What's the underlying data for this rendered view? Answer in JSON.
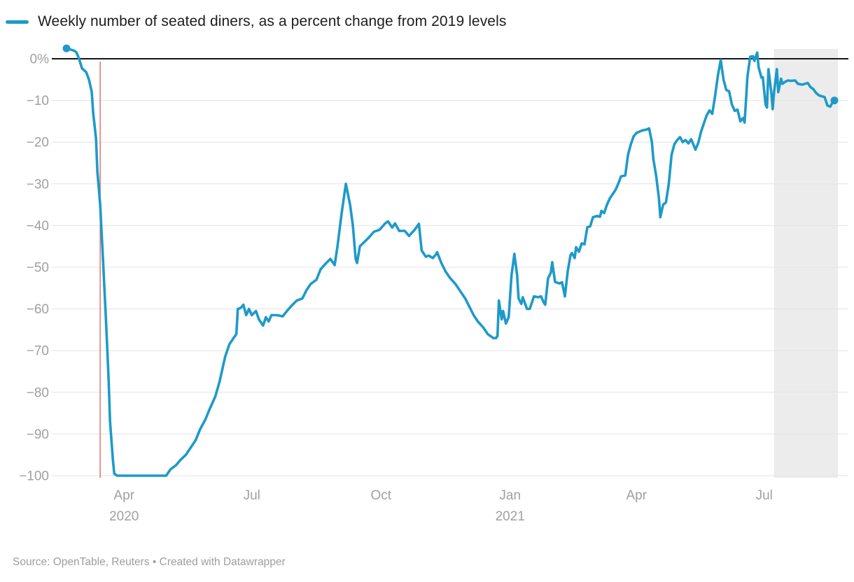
{
  "header": {
    "title": "Weekly number of seated diners, as a percent change from 2019 levels"
  },
  "footer": {
    "source": "Source: OpenTable, Reuters • Created with Datawrapper"
  },
  "chart_data": {
    "type": "line",
    "title": "Weekly number of seated diners, as a percent change from 2019 levels",
    "xlabel": "",
    "ylabel": "percent change from 2019 levels",
    "ylim": [
      -100,
      3
    ],
    "grid": true,
    "legend_position": "top-left",
    "line_color": "#1e9ac8",
    "grid_color": "#e3e3e3",
    "zero_line_color": "#151515",
    "axis_text_color": "#a0a0a0",
    "event_line": {
      "date": "2020-03-15",
      "color": "#e07474"
    },
    "highlight_range": {
      "from": "2021-07-08",
      "to": "2021-08-22",
      "color": "#ececec"
    },
    "y_ticks": [
      {
        "value": 0,
        "label": "0%"
      },
      {
        "value": -10,
        "label": "−10"
      },
      {
        "value": -20,
        "label": "−20"
      },
      {
        "value": -30,
        "label": "−30"
      },
      {
        "value": -40,
        "label": "−40"
      },
      {
        "value": -50,
        "label": "−50"
      },
      {
        "value": -60,
        "label": "−60"
      },
      {
        "value": -70,
        "label": "−70"
      },
      {
        "value": -80,
        "label": "−80"
      },
      {
        "value": -90,
        "label": "−90"
      },
      {
        "value": -100,
        "label": "−100"
      }
    ],
    "x_ticks": [
      {
        "date": "2020-04-01",
        "label": "Apr",
        "year": "2020"
      },
      {
        "date": "2020-07-01",
        "label": "Jul"
      },
      {
        "date": "2020-10-01",
        "label": "Oct"
      },
      {
        "date": "2021-01-01",
        "label": "Jan",
        "year": "2021"
      },
      {
        "date": "2021-04-01",
        "label": "Apr"
      },
      {
        "date": "2021-07-01",
        "label": "Jul"
      }
    ],
    "points": [
      [
        "2020-02-20",
        2.5
      ],
      [
        "2020-02-22",
        2.3
      ],
      [
        "2020-02-25",
        2.0
      ],
      [
        "2020-02-27",
        1.6
      ],
      [
        "2020-02-29",
        0
      ],
      [
        "2020-03-02",
        -2.3
      ],
      [
        "2020-03-03",
        -2.6
      ],
      [
        "2020-03-05",
        -3.2
      ],
      [
        "2020-03-07",
        -5
      ],
      [
        "2020-03-09",
        -8
      ],
      [
        "2020-03-10",
        -13
      ],
      [
        "2020-03-12",
        -19
      ],
      [
        "2020-03-13",
        -27
      ],
      [
        "2020-03-15",
        -35
      ],
      [
        "2020-03-17",
        -48
      ],
      [
        "2020-03-19",
        -62
      ],
      [
        "2020-03-21",
        -77
      ],
      [
        "2020-03-22",
        -87
      ],
      [
        "2020-03-24",
        -96
      ],
      [
        "2020-03-25",
        -99.5
      ],
      [
        "2020-03-27",
        -100
      ],
      [
        "2020-04-05",
        -100
      ],
      [
        "2020-04-15",
        -100
      ],
      [
        "2020-04-25",
        -100
      ],
      [
        "2020-05-01",
        -100
      ],
      [
        "2020-05-04",
        -98.5
      ],
      [
        "2020-05-08",
        -97.5
      ],
      [
        "2020-05-11",
        -96.3
      ],
      [
        "2020-05-15",
        -95
      ],
      [
        "2020-05-18",
        -93.5
      ],
      [
        "2020-05-22",
        -91.5
      ],
      [
        "2020-05-25",
        -89
      ],
      [
        "2020-05-29",
        -86.5
      ],
      [
        "2020-06-01",
        -84
      ],
      [
        "2020-06-05",
        -81
      ],
      [
        "2020-06-08",
        -77.5
      ],
      [
        "2020-06-12",
        -71.5
      ],
      [
        "2020-06-15",
        -68.5
      ],
      [
        "2020-06-18",
        -67
      ],
      [
        "2020-06-20",
        -66
      ],
      [
        "2020-06-21",
        -60
      ],
      [
        "2020-06-23",
        -59.8
      ],
      [
        "2020-06-25",
        -59
      ],
      [
        "2020-06-27",
        -61.5
      ],
      [
        "2020-06-29",
        -60
      ],
      [
        "2020-07-01",
        -61.5
      ],
      [
        "2020-07-04",
        -60.5
      ],
      [
        "2020-07-06",
        -62.5
      ],
      [
        "2020-07-09",
        -64
      ],
      [
        "2020-07-11",
        -62
      ],
      [
        "2020-07-13",
        -63
      ],
      [
        "2020-07-15",
        -61.5
      ],
      [
        "2020-07-19",
        -61.5
      ],
      [
        "2020-07-23",
        -61.8
      ],
      [
        "2020-07-26",
        -60.5
      ],
      [
        "2020-07-30",
        -59
      ],
      [
        "2020-08-02",
        -58
      ],
      [
        "2020-08-06",
        -57.5
      ],
      [
        "2020-08-09",
        -55.5
      ],
      [
        "2020-08-12",
        -54
      ],
      [
        "2020-08-16",
        -53
      ],
      [
        "2020-08-19",
        -50.5
      ],
      [
        "2020-08-23",
        -49
      ],
      [
        "2020-08-26",
        -48
      ],
      [
        "2020-08-29",
        -49.5
      ],
      [
        "2020-08-31",
        -45
      ],
      [
        "2020-09-03",
        -37
      ],
      [
        "2020-09-06",
        -30
      ],
      [
        "2020-09-09",
        -35
      ],
      [
        "2020-09-11",
        -40
      ],
      [
        "2020-09-13",
        -48
      ],
      [
        "2020-09-14",
        -49
      ],
      [
        "2020-09-16",
        -45
      ],
      [
        "2020-09-19",
        -44
      ],
      [
        "2020-09-22",
        -43
      ],
      [
        "2020-09-26",
        -41.5
      ],
      [
        "2020-09-30",
        -41
      ],
      [
        "2020-10-04",
        -39.5
      ],
      [
        "2020-10-06",
        -39
      ],
      [
        "2020-10-09",
        -40.5
      ],
      [
        "2020-10-11",
        -39.5
      ],
      [
        "2020-10-14",
        -41.3
      ],
      [
        "2020-10-18",
        -41.3
      ],
      [
        "2020-10-21",
        -42.5
      ],
      [
        "2020-10-25",
        -41
      ],
      [
        "2020-10-28",
        -39.6
      ],
      [
        "2020-10-30",
        -46
      ],
      [
        "2020-11-02",
        -47.5
      ],
      [
        "2020-11-04",
        -47.2
      ],
      [
        "2020-11-07",
        -47.8
      ],
      [
        "2020-11-09",
        -47
      ],
      [
        "2020-11-10",
        -46.4
      ],
      [
        "2020-11-13",
        -49
      ],
      [
        "2020-11-16",
        -51
      ],
      [
        "2020-11-19",
        -52.5
      ],
      [
        "2020-11-23",
        -54
      ],
      [
        "2020-11-26",
        -55.5
      ],
      [
        "2020-11-30",
        -57.5
      ],
      [
        "2020-12-03",
        -59.5
      ],
      [
        "2020-12-06",
        -61.5
      ],
      [
        "2020-12-09",
        -63
      ],
      [
        "2020-12-13",
        -64.5
      ],
      [
        "2020-12-16",
        -66
      ],
      [
        "2020-12-20",
        -67
      ],
      [
        "2020-12-22",
        -67
      ],
      [
        "2020-12-23",
        -66.5
      ],
      [
        "2020-12-24",
        -58
      ],
      [
        "2020-12-26",
        -62.5
      ],
      [
        "2020-12-27",
        -60.5
      ],
      [
        "2020-12-29",
        -63.5
      ],
      [
        "2020-12-31",
        -62
      ],
      [
        "2021-01-02",
        -52
      ],
      [
        "2021-01-04",
        -46.8
      ],
      [
        "2021-01-06",
        -52
      ],
      [
        "2021-01-07",
        -57.5
      ],
      [
        "2021-01-09",
        -58.8
      ],
      [
        "2021-01-10",
        -57.2
      ],
      [
        "2021-01-13",
        -60
      ],
      [
        "2021-01-15",
        -60
      ],
      [
        "2021-01-18",
        -57
      ],
      [
        "2021-01-21",
        -57.2
      ],
      [
        "2021-01-23",
        -57
      ],
      [
        "2021-01-25",
        -58.5
      ],
      [
        "2021-01-26",
        -59
      ],
      [
        "2021-01-28",
        -52.7
      ],
      [
        "2021-01-30",
        -51.3
      ],
      [
        "2021-01-31",
        -48.8
      ],
      [
        "2021-02-02",
        -53.5
      ],
      [
        "2021-02-05",
        -53.9
      ],
      [
        "2021-02-07",
        -53.6
      ],
      [
        "2021-02-09",
        -57
      ],
      [
        "2021-02-11",
        -51
      ],
      [
        "2021-02-13",
        -47.1
      ],
      [
        "2021-02-14",
        -46.6
      ],
      [
        "2021-02-16",
        -47.8
      ],
      [
        "2021-02-17",
        -45.2
      ],
      [
        "2021-02-19",
        -46.3
      ],
      [
        "2021-02-21",
        -44.3
      ],
      [
        "2021-02-23",
        -44.5
      ],
      [
        "2021-02-25",
        -40.4
      ],
      [
        "2021-02-27",
        -40.2
      ],
      [
        "2021-03-01",
        -38
      ],
      [
        "2021-03-04",
        -37.7
      ],
      [
        "2021-03-06",
        -37.9
      ],
      [
        "2021-03-07",
        -36.5
      ],
      [
        "2021-03-09",
        -37
      ],
      [
        "2021-03-11",
        -35
      ],
      [
        "2021-03-13",
        -33.5
      ],
      [
        "2021-03-15",
        -32.5
      ],
      [
        "2021-03-17",
        -31.5
      ],
      [
        "2021-03-19",
        -30
      ],
      [
        "2021-03-21",
        -28.2
      ],
      [
        "2021-03-24",
        -28
      ],
      [
        "2021-03-26",
        -23
      ],
      [
        "2021-03-28",
        -20.5
      ],
      [
        "2021-03-30",
        -18.6
      ],
      [
        "2021-04-01",
        -17.8
      ],
      [
        "2021-04-03",
        -17.5
      ],
      [
        "2021-04-05",
        -17.2
      ],
      [
        "2021-04-08",
        -17
      ],
      [
        "2021-04-10",
        -16.7
      ],
      [
        "2021-04-12",
        -20
      ],
      [
        "2021-04-13",
        -24
      ],
      [
        "2021-04-15",
        -28
      ],
      [
        "2021-04-17",
        -33.4
      ],
      [
        "2021-04-18",
        -38
      ],
      [
        "2021-04-20",
        -35
      ],
      [
        "2021-04-22",
        -34.5
      ],
      [
        "2021-04-24",
        -30
      ],
      [
        "2021-04-26",
        -23
      ],
      [
        "2021-04-28",
        -20.5
      ],
      [
        "2021-04-30",
        -19.5
      ],
      [
        "2021-05-02",
        -18.8
      ],
      [
        "2021-05-04",
        -20
      ],
      [
        "2021-05-06",
        -19.5
      ],
      [
        "2021-05-08",
        -20.3
      ],
      [
        "2021-05-10",
        -19.3
      ],
      [
        "2021-05-13",
        -21.8
      ],
      [
        "2021-05-15",
        -20.2
      ],
      [
        "2021-05-17",
        -17.5
      ],
      [
        "2021-05-19",
        -15.5
      ],
      [
        "2021-05-21",
        -13.6
      ],
      [
        "2021-05-23",
        -12.4
      ],
      [
        "2021-05-25",
        -13.2
      ],
      [
        "2021-05-27",
        -9
      ],
      [
        "2021-05-29",
        -4
      ],
      [
        "2021-05-31",
        -0.3
      ],
      [
        "2021-06-02",
        -5
      ],
      [
        "2021-06-04",
        -7.5
      ],
      [
        "2021-06-06",
        -7.8
      ],
      [
        "2021-06-08",
        -11
      ],
      [
        "2021-06-10",
        -12.5
      ],
      [
        "2021-06-12",
        -12.2
      ],
      [
        "2021-06-14",
        -15
      ],
      [
        "2021-06-16",
        -14.2
      ],
      [
        "2021-06-17",
        -15.3
      ],
      [
        "2021-06-18",
        -10
      ],
      [
        "2021-06-19",
        -4.4
      ],
      [
        "2021-06-21",
        0.5
      ],
      [
        "2021-06-23",
        0.6
      ],
      [
        "2021-06-24",
        -0.5
      ],
      [
        "2021-06-26",
        1.5
      ],
      [
        "2021-06-27",
        -2
      ],
      [
        "2021-06-29",
        -4.5
      ],
      [
        "2021-06-30",
        -4.4
      ],
      [
        "2021-07-02",
        -11
      ],
      [
        "2021-07-03",
        -11.7
      ],
      [
        "2021-07-04",
        -2.5
      ],
      [
        "2021-07-06",
        -8
      ],
      [
        "2021-07-07",
        -12.1
      ],
      [
        "2021-07-08",
        -8
      ],
      [
        "2021-07-10",
        -2.5
      ],
      [
        "2021-07-11",
        -8
      ],
      [
        "2021-07-13",
        -4.8
      ],
      [
        "2021-07-14",
        -6
      ],
      [
        "2021-07-16",
        -5.5
      ],
      [
        "2021-07-18",
        -5.2
      ],
      [
        "2021-07-20",
        -5.3
      ],
      [
        "2021-07-23",
        -5.2
      ],
      [
        "2021-07-25",
        -6
      ],
      [
        "2021-07-28",
        -6.2
      ],
      [
        "2021-07-30",
        -6
      ],
      [
        "2021-08-01",
        -5.8
      ],
      [
        "2021-08-03",
        -6.8
      ],
      [
        "2021-08-05",
        -7.3
      ],
      [
        "2021-08-07",
        -8.2
      ],
      [
        "2021-08-09",
        -8.8
      ],
      [
        "2021-08-11",
        -9
      ],
      [
        "2021-08-13",
        -9.2
      ],
      [
        "2021-08-15",
        -11.2
      ],
      [
        "2021-08-17",
        -11.5
      ],
      [
        "2021-08-19",
        -10.3
      ],
      [
        "2021-08-20",
        -10
      ]
    ]
  }
}
